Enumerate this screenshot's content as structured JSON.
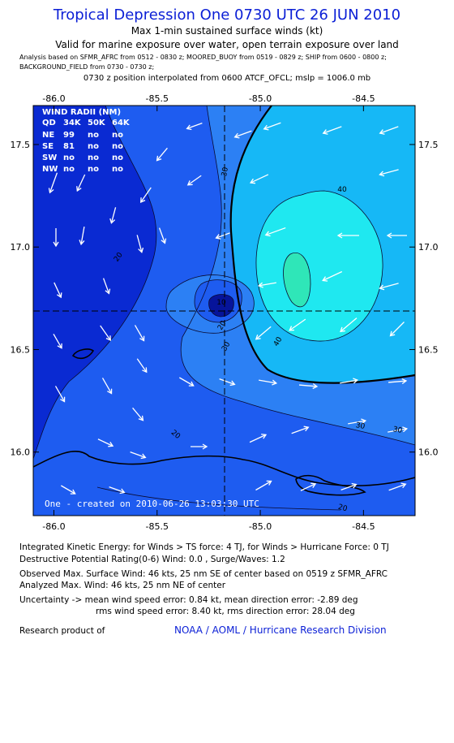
{
  "header": {
    "title": "Tropical Depression One 0730 UTC 26 JUN 2010",
    "subtitle_1": "Max 1-min sustained surface winds (kt)",
    "subtitle_2": "Valid for marine exposure over water, open terrain exposure over land",
    "analysis_line_1": "Analysis based on   SFMR_AFRC from 0512 - 0830 z;  MOORED_BUOY from 0519 - 0829 z;  SHIP from 0600 - 0800 z;",
    "analysis_line_2": "BACKGROUND_FIELD from 0730 - 0730 z;",
    "position_line": "0730 z position interpolated from 0600 ATCF_OFCL; mslp = 1006.0 mb"
  },
  "map": {
    "lon_ticks": [
      "-86.0",
      "-85.5",
      "-85.0",
      "-84.5"
    ],
    "lat_ticks": [
      "17.5",
      "17.0",
      "16.5",
      "16.0"
    ],
    "lon_range": [
      -86.1,
      -84.25
    ],
    "lat_range": [
      15.69,
      17.69
    ],
    "center": {
      "lon": -85.17,
      "lat": 16.7
    },
    "contour_labels": [
      "20",
      "20",
      "30",
      "30",
      "30",
      "40",
      "40",
      "10",
      "20",
      "30",
      "20"
    ],
    "credit": "One - created on 2010-06-26 13:03:30 UTC",
    "colors": {
      "c10": "#0a2ad2",
      "c20": "#1e5cf0",
      "c30": "#2c80f4",
      "c34": "#16b8f6",
      "c40": "#1fe8f0",
      "c45": "#2fe6b8",
      "land_outline": "#000000",
      "arrow": "#ffffff"
    }
  },
  "wind_radii": {
    "title": "WIND RADII (NM)",
    "header": [
      "QD",
      "34K",
      "50K",
      "64K"
    ],
    "rows": [
      [
        "NE",
        "99",
        "no",
        "no"
      ],
      [
        "SE",
        "81",
        "no",
        "no"
      ],
      [
        "SW",
        "no",
        "no",
        "no"
      ],
      [
        "NW",
        "no",
        "no",
        "no"
      ]
    ]
  },
  "footer": {
    "ike": "Integrated Kinetic Energy:  for Winds > TS force: 4 TJ,  for Winds > Hurricane Force: 0 TJ",
    "dpr": "Destructive Potential Rating(0-6)   Wind: 0.0 , Surge/Waves: 1.2",
    "observed": "Observed Max. Surface Wind: 46 kts, 25 nm SE of center based on 0519 z SFMR_AFRC",
    "analyzed": "Analyzed Max. Wind: 46 kts, 25 nm NE of center",
    "uncertainty_1": "Uncertainty -> mean wind speed error: 0.84 kt,   mean direction error:  -2.89 deg",
    "uncertainty_2": "rms wind speed error: 8.40 kt,   rms direction error: 28.04 deg",
    "research": "Research product of",
    "org": "NOAA / AOML / Hurricane Research Division"
  }
}
